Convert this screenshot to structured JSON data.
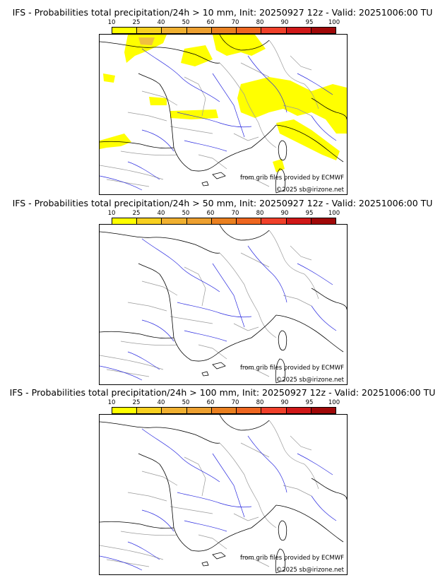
{
  "colors": {
    "scale": [
      "#ffff00",
      "#f8d020",
      "#f0b030",
      "#eda030",
      "#ea8020",
      "#ee6620",
      "#f0402a",
      "#d01818",
      "#a00808",
      "#600000"
    ],
    "precip": "#ffff00",
    "precip_low": "#f0c040",
    "coast": "#000000",
    "borders": "#9a9a9a",
    "rivers": "#2a2ae0"
  },
  "legend": {
    "labels": [
      "10",
      "25",
      "40",
      "50",
      "60",
      "70",
      "80",
      "90",
      "95",
      "100"
    ]
  },
  "panels": [
    {
      "title": "IFS - Probabilities total precipitation/24h > 10 mm, Init: 20250927 12z - Valid: 20251006:00 TU",
      "credit_source": "from grib files provided by ECMWF",
      "credit_copyright": "©2025 sb@irizone.net",
      "has_precip": true
    },
    {
      "title": "IFS - Probabilities total precipitation/24h > 50 mm, Init: 20250927 12z - Valid: 20251006:00 TU",
      "credit_source": "from grib files provided by ECMWF",
      "credit_copyright": "©2025 sb@irizone.net",
      "has_precip": false
    },
    {
      "title": "IFS - Probabilities total precipitation/24h > 100 mm, Init: 20250927 12z - Valid: 20251006:00 TU",
      "credit_source": "from grib files provided by ECMWF",
      "credit_copyright": "©2025 sb@irizone.net",
      "has_precip": false
    }
  ]
}
